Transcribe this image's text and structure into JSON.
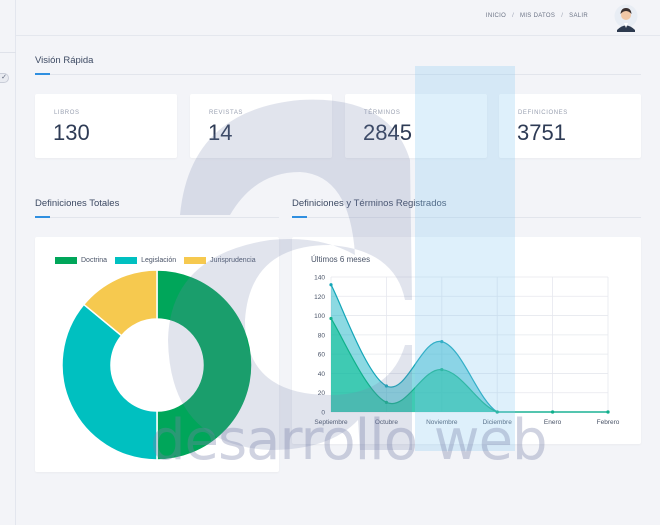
{
  "topnav": {
    "items": [
      "INICIO",
      "MIS DATOS",
      "SALIR"
    ],
    "separator": "/"
  },
  "sidebar": {
    "toggle_glyph": "✓"
  },
  "sections": {
    "quick_view": "Visión Rápida",
    "totals": "Definiciones Totales",
    "registered": "Definiciones y Términos Registrados"
  },
  "stats": [
    {
      "label": "LIBROS",
      "value": "130"
    },
    {
      "label": "REVISTAS",
      "value": "14"
    },
    {
      "label": "TÉRMINOS",
      "value": "2845"
    },
    {
      "label": "DEFINICIONES",
      "value": "3751"
    }
  ],
  "colors": {
    "accent": "#2f8fe0",
    "doctrina": "#00a65a",
    "legislacion": "#00c0c0",
    "jurisprudencia": "#f6c94f"
  },
  "watermark": {
    "text": "desarrollo web"
  },
  "chart_data": [
    {
      "type": "pie",
      "variant": "doughnut",
      "categories": [
        "Doctrina",
        "Legislación",
        "Jurisprudencia"
      ],
      "values": [
        50,
        36,
        14
      ],
      "legend": "top"
    },
    {
      "type": "area",
      "title": "Últimos 6 meses",
      "categories": [
        "Septiembre",
        "Octubre",
        "Noviembre",
        "Diciembre",
        "Enero",
        "Febrero"
      ],
      "series": [
        {
          "values": [
            132,
            27,
            73,
            0,
            0,
            0
          ]
        },
        {
          "values": [
            97,
            10,
            44,
            0,
            0,
            0
          ]
        }
      ],
      "ylim": [
        0,
        140
      ],
      "yticks": [
        0,
        20,
        40,
        60,
        80,
        100,
        120,
        140
      ],
      "grid": true
    }
  ]
}
